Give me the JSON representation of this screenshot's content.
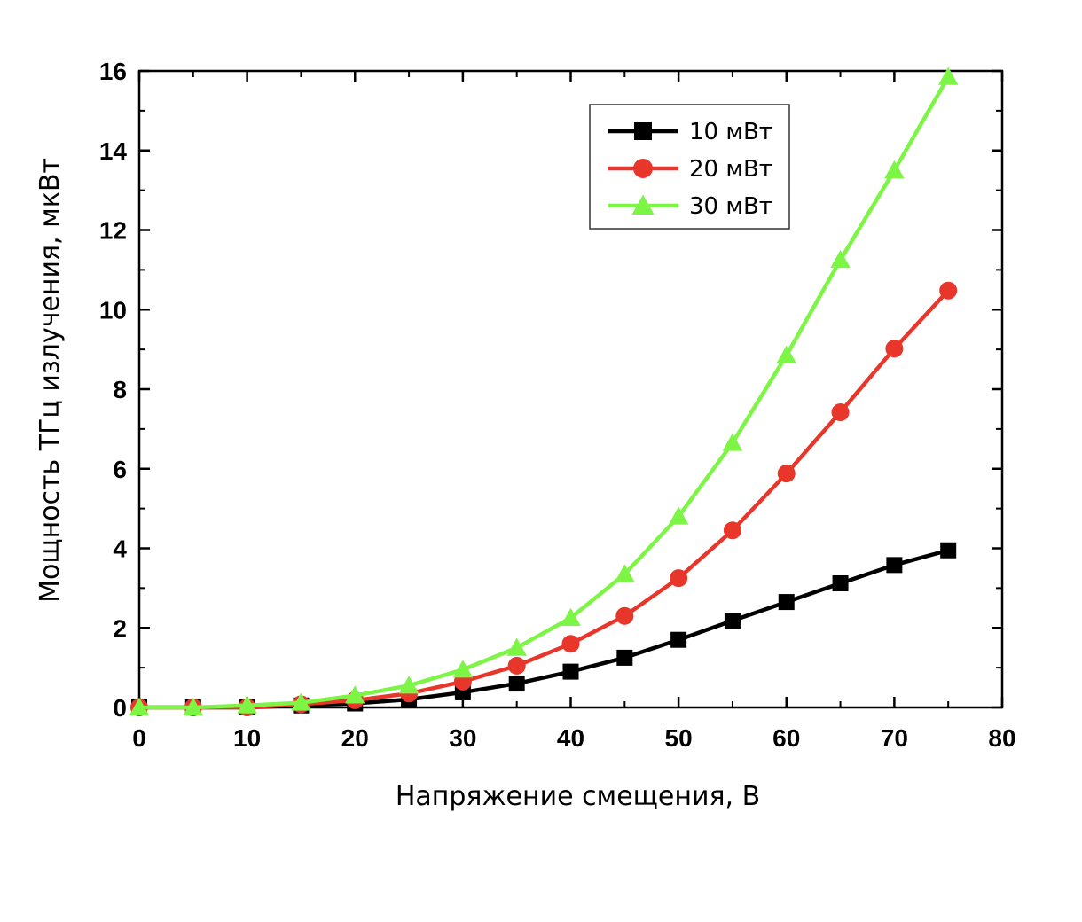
{
  "chart_data": {
    "type": "line",
    "title": "",
    "xlabel": "Напряжение смещения, В",
    "ylabel": "Мощность ТГц излучения, мкВт",
    "xlim": [
      0,
      80
    ],
    "ylim": [
      0,
      16
    ],
    "xticks": [
      0,
      10,
      20,
      30,
      40,
      50,
      60,
      70,
      80
    ],
    "yticks": [
      0,
      2,
      4,
      6,
      8,
      10,
      12,
      14,
      16
    ],
    "grid": false,
    "legend_position": "top-right",
    "x": [
      0,
      5,
      10,
      15,
      20,
      25,
      30,
      35,
      40,
      45,
      50,
      55,
      60,
      65,
      70,
      75
    ],
    "series": [
      {
        "name": "10 мВт",
        "color": "#000000",
        "marker": "square",
        "values": [
          0,
          0,
          0,
          0.05,
          0.1,
          0.2,
          0.38,
          0.6,
          0.9,
          1.25,
          1.7,
          2.18,
          2.65,
          3.12,
          3.58,
          3.95
        ]
      },
      {
        "name": "20 мВт",
        "color": "#e8362a",
        "marker": "circle",
        "values": [
          0,
          0,
          0,
          0.08,
          0.18,
          0.35,
          0.65,
          1.05,
          1.6,
          2.3,
          3.25,
          4.45,
          5.88,
          7.42,
          9.02,
          10.48
        ]
      },
      {
        "name": "30 мВт",
        "color": "#7cf545",
        "marker": "triangle",
        "values": [
          0,
          0,
          0.05,
          0.12,
          0.3,
          0.55,
          0.95,
          1.5,
          2.25,
          3.35,
          4.8,
          6.65,
          8.85,
          11.25,
          13.5,
          15.85
        ]
      }
    ]
  }
}
